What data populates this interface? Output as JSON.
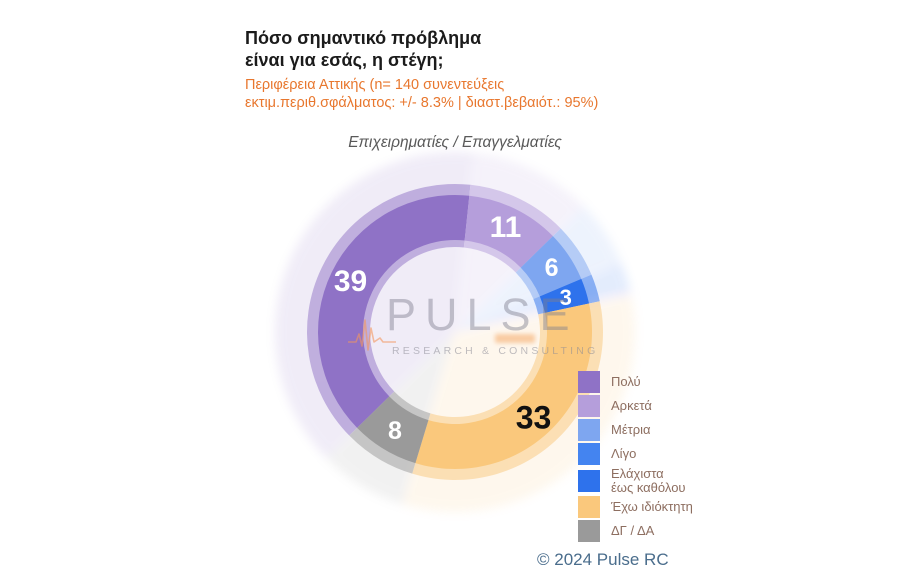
{
  "header": {
    "title_line1": "Πόσο σημαντικό πρόβλημα",
    "title_line2": "είναι για εσάς, η στέγη;",
    "note_line1": "Περιφέρεια Αττικής   (n= 140 συνεντεύξεις",
    "note_line2": "εκτιμ.περιθ.σφάλματος: +/- 8.3% | διαστ.βεβαιότ.: 95%)",
    "accent_color": "#E8772E"
  },
  "chart_data": {
    "type": "pie",
    "donut": true,
    "title": "Επιχειρηματίες / Επαγγελματίες",
    "rotation_deg": 225.6,
    "legend_position": "right",
    "units": "percent",
    "segments": [
      {
        "label": "Πολύ",
        "value": 39,
        "color": "#8F72C6",
        "label_color": "#FFFFFF",
        "label_size": 30
      },
      {
        "label": "Αρκετά",
        "value": 11,
        "color": "#B59EDB",
        "label_color": "#FFFFFF",
        "label_size": 30
      },
      {
        "label": "Μέτρια",
        "value": 6,
        "color": "#7EA6F0",
        "label_color": "#FFFFFF",
        "label_size": 25
      },
      {
        "label": "Λίγο",
        "value": 0,
        "color": "#4484F0",
        "label_color": "#FFFFFF",
        "label_size": 22
      },
      {
        "label": "Ελάχιστα\nέως καθόλου",
        "value": 3,
        "color": "#2E72EC",
        "label_color": "#FFFFFF",
        "label_size": 22
      },
      {
        "label": "Έχω ιδιόκτητη",
        "value": 33,
        "color": "#FAC87C",
        "label_color": "#111111",
        "label_size": 32
      },
      {
        "label": "ΔΓ / ΔΑ",
        "value": 8,
        "color": "#9A9A9A",
        "label_color": "#FFFFFF",
        "label_size": 25
      }
    ]
  },
  "watermark": {
    "name": "PULSE",
    "tagline": "RESEARCH & CONSULTING"
  },
  "footer": {
    "copyright": "© 2024 Pulse RC"
  }
}
